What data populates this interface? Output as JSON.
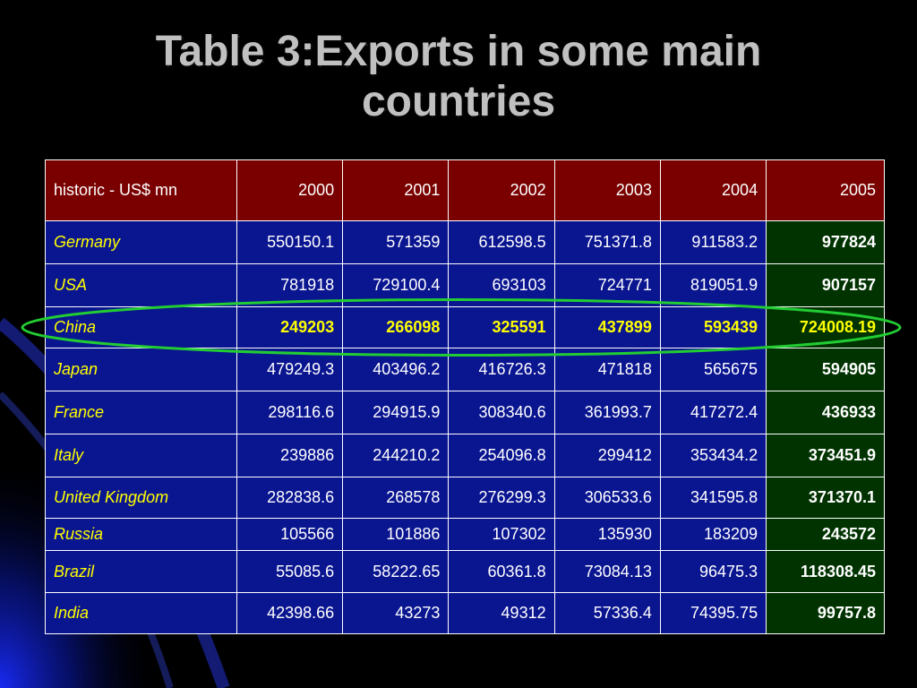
{
  "title": {
    "line1": "Table 3:Exports in some main",
    "line2": "countries"
  },
  "table": {
    "header": [
      "historic - US$ mn",
      "2000",
      "2001",
      "2002",
      "2003",
      "2004",
      "2005"
    ],
    "rows": [
      {
        "country": "Germany",
        "values": [
          "550150.1",
          "571359",
          "612598.5",
          "751371.8",
          "911583.2",
          "977824"
        ]
      },
      {
        "country": "USA",
        "values": [
          "781918",
          "729100.4",
          "693103",
          "724771",
          "819051.9",
          "907157"
        ]
      },
      {
        "country": "China",
        "values": [
          "249203",
          "266098",
          "325591",
          "437899",
          "593439",
          "724008.19"
        ]
      },
      {
        "country": "Japan",
        "values": [
          "479249.3",
          "403496.2",
          "416726.3",
          "471818",
          "565675",
          "594905"
        ]
      },
      {
        "country": "France",
        "values": [
          "298116.6",
          "294915.9",
          "308340.6",
          "361993.7",
          "417272.4",
          "436933"
        ]
      },
      {
        "country": "Italy",
        "values": [
          "239886",
          "244210.2",
          "254096.8",
          "299412",
          "353434.2",
          "373451.9"
        ]
      },
      {
        "country": "United Kingdom",
        "values": [
          "282838.6",
          "268578",
          "276299.3",
          "306533.6",
          "341595.8",
          "371370.1"
        ]
      },
      {
        "country": "Russia",
        "values": [
          "105566",
          "101886",
          "107302",
          "135930",
          "183209",
          "243572"
        ]
      },
      {
        "country": "Brazil",
        "values": [
          "55085.6",
          "58222.65",
          "60361.8",
          "73084.13",
          "96475.3",
          "118308.45"
        ]
      },
      {
        "country": "India",
        "values": [
          "42398.66",
          "43273",
          "49312",
          "57336.4",
          "74395.75",
          "99757.8"
        ]
      }
    ]
  },
  "highlight": {
    "row": "China",
    "color": "#22cc33"
  },
  "colors": {
    "header_bg": "#7a0000",
    "body_bg": "#0a1590",
    "last_col_bg": "#003300",
    "country_text": "#ffff00"
  }
}
